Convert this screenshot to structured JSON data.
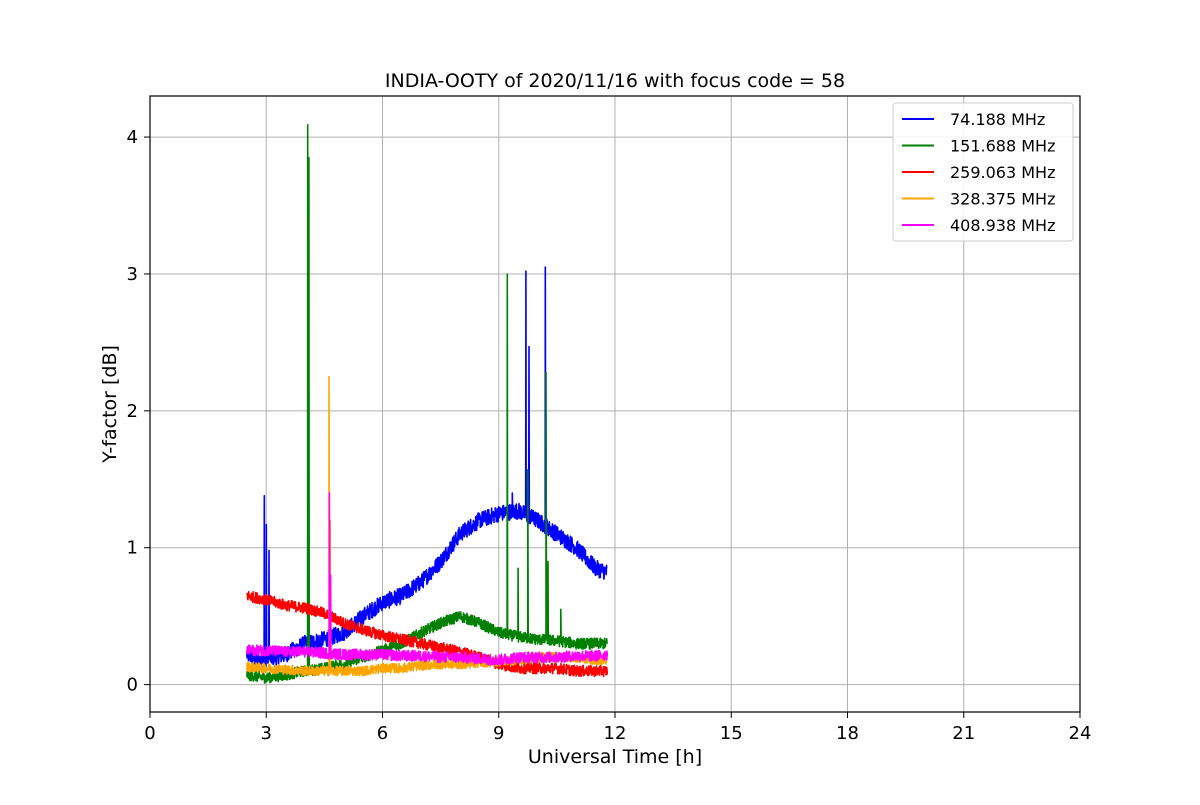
{
  "chart_data": {
    "type": "line",
    "title": "INDIA-OOTY of 2020/11/16 with focus code = 58",
    "xlabel": "Universal Time [h]",
    "ylabel": "Y-factor [dB]",
    "xlim": [
      0,
      24
    ],
    "ylim": [
      -0.2,
      4.3
    ],
    "xticks": [
      0,
      3,
      6,
      9,
      12,
      15,
      18,
      21,
      24
    ],
    "xtick_labels": [
      "0",
      "3",
      "6",
      "9",
      "12",
      "15",
      "18",
      "21",
      "24"
    ],
    "yticks": [
      0,
      1,
      2,
      3,
      4
    ],
    "ytick_labels": [
      "0",
      "1",
      "2",
      "3",
      "4"
    ],
    "grid": true,
    "legend_position": "top-right",
    "series": [
      {
        "name": " 74.188 MHz",
        "color": "#0000ff",
        "base_points": [
          [
            2.5,
            0.22
          ],
          [
            2.8,
            0.18
          ],
          [
            3.2,
            0.2
          ],
          [
            3.5,
            0.22
          ],
          [
            4.0,
            0.3
          ],
          [
            4.5,
            0.33
          ],
          [
            5.0,
            0.38
          ],
          [
            5.5,
            0.5
          ],
          [
            6.0,
            0.6
          ],
          [
            6.5,
            0.65
          ],
          [
            7.0,
            0.75
          ],
          [
            7.5,
            0.9
          ],
          [
            8.0,
            1.1
          ],
          [
            8.5,
            1.2
          ],
          [
            9.0,
            1.25
          ],
          [
            9.5,
            1.27
          ],
          [
            10.0,
            1.2
          ],
          [
            10.5,
            1.1
          ],
          [
            11.0,
            1.0
          ],
          [
            11.5,
            0.85
          ],
          [
            11.8,
            0.82
          ]
        ],
        "noise": 0.06,
        "spikes": [
          [
            2.95,
            1.38
          ],
          [
            3.0,
            1.17
          ],
          [
            3.07,
            0.98
          ],
          [
            9.7,
            3.02
          ],
          [
            9.78,
            2.47
          ],
          [
            10.2,
            3.05
          ],
          [
            9.35,
            1.4
          ]
        ]
      },
      {
        "name": "151.688 MHz",
        "color": "#008000",
        "base_points": [
          [
            2.5,
            0.07
          ],
          [
            3.0,
            0.05
          ],
          [
            3.5,
            0.07
          ],
          [
            4.0,
            0.1
          ],
          [
            4.5,
            0.12
          ],
          [
            5.0,
            0.15
          ],
          [
            5.5,
            0.2
          ],
          [
            6.0,
            0.25
          ],
          [
            6.5,
            0.3
          ],
          [
            7.0,
            0.38
          ],
          [
            7.5,
            0.45
          ],
          [
            8.0,
            0.5
          ],
          [
            8.5,
            0.45
          ],
          [
            9.0,
            0.38
          ],
          [
            9.5,
            0.35
          ],
          [
            10.0,
            0.33
          ],
          [
            10.5,
            0.32
          ],
          [
            11.0,
            0.3
          ],
          [
            11.5,
            0.3
          ],
          [
            11.8,
            0.3
          ]
        ],
        "noise": 0.04,
        "spikes": [
          [
            4.07,
            4.09
          ],
          [
            4.1,
            3.85
          ],
          [
            9.22,
            3.0
          ],
          [
            9.75,
            1.57
          ],
          [
            10.22,
            2.28
          ],
          [
            10.27,
            0.9
          ],
          [
            9.5,
            0.85
          ],
          [
            10.6,
            0.55
          ]
        ]
      },
      {
        "name": "259.063 MHz",
        "color": "#ff0000",
        "base_points": [
          [
            2.5,
            0.65
          ],
          [
            3.0,
            0.62
          ],
          [
            3.5,
            0.58
          ],
          [
            4.0,
            0.56
          ],
          [
            4.5,
            0.52
          ],
          [
            5.0,
            0.45
          ],
          [
            5.5,
            0.4
          ],
          [
            6.0,
            0.36
          ],
          [
            6.5,
            0.33
          ],
          [
            7.0,
            0.3
          ],
          [
            7.5,
            0.27
          ],
          [
            8.0,
            0.24
          ],
          [
            8.5,
            0.2
          ],
          [
            9.0,
            0.15
          ],
          [
            9.5,
            0.12
          ],
          [
            10.0,
            0.12
          ],
          [
            10.5,
            0.12
          ],
          [
            11.0,
            0.1
          ],
          [
            11.5,
            0.1
          ],
          [
            11.8,
            0.1
          ]
        ],
        "noise": 0.04,
        "spikes": []
      },
      {
        "name": "328.375 MHz",
        "color": "#ffa500",
        "base_points": [
          [
            2.5,
            0.13
          ],
          [
            3.0,
            0.12
          ],
          [
            3.5,
            0.11
          ],
          [
            4.0,
            0.1
          ],
          [
            4.5,
            0.1
          ],
          [
            5.0,
            0.1
          ],
          [
            5.5,
            0.1
          ],
          [
            6.0,
            0.12
          ],
          [
            6.5,
            0.12
          ],
          [
            7.0,
            0.14
          ],
          [
            7.5,
            0.15
          ],
          [
            8.0,
            0.15
          ],
          [
            8.5,
            0.16
          ],
          [
            9.0,
            0.17
          ],
          [
            9.5,
            0.18
          ],
          [
            10.0,
            0.2
          ],
          [
            10.5,
            0.2
          ],
          [
            11.0,
            0.2
          ],
          [
            11.5,
            0.18
          ],
          [
            11.8,
            0.18
          ]
        ],
        "noise": 0.035,
        "spikes": [
          [
            4.62,
            2.25
          ],
          [
            4.65,
            1.2
          ]
        ]
      },
      {
        "name": "408.938 MHz",
        "color": "#ff00ff",
        "base_points": [
          [
            2.5,
            0.25
          ],
          [
            3.0,
            0.25
          ],
          [
            3.5,
            0.24
          ],
          [
            4.0,
            0.24
          ],
          [
            4.5,
            0.23
          ],
          [
            5.0,
            0.22
          ],
          [
            5.5,
            0.22
          ],
          [
            6.0,
            0.22
          ],
          [
            6.5,
            0.21
          ],
          [
            7.0,
            0.21
          ],
          [
            7.5,
            0.2
          ],
          [
            8.0,
            0.2
          ],
          [
            8.5,
            0.19
          ],
          [
            9.0,
            0.18
          ],
          [
            9.5,
            0.2
          ],
          [
            10.0,
            0.2
          ],
          [
            10.5,
            0.2
          ],
          [
            11.0,
            0.21
          ],
          [
            11.5,
            0.21
          ],
          [
            11.8,
            0.22
          ]
        ],
        "noise": 0.04,
        "spikes": [
          [
            4.63,
            1.4
          ],
          [
            4.66,
            0.8
          ]
        ]
      }
    ]
  }
}
